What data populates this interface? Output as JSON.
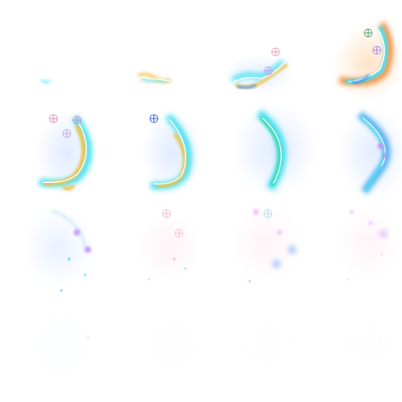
{
  "sprite_sheet": {
    "columns": 4,
    "rows": 4,
    "frames": [
      {
        "index": 0,
        "opacity": 0.55
      },
      {
        "index": 1,
        "opacity": 0.65
      },
      {
        "index": 2,
        "opacity": 0.9
      },
      {
        "index": 3,
        "opacity": 1.0
      },
      {
        "index": 4,
        "opacity": 1.0
      },
      {
        "index": 5,
        "opacity": 1.0
      },
      {
        "index": 6,
        "opacity": 1.0
      },
      {
        "index": 7,
        "opacity": 0.95
      },
      {
        "index": 8,
        "opacity": 0.7
      },
      {
        "index": 9,
        "opacity": 0.55
      },
      {
        "index": 10,
        "opacity": 0.5
      },
      {
        "index": 11,
        "opacity": 0.45
      },
      {
        "index": 12,
        "opacity": 0.12
      },
      {
        "index": 13,
        "opacity": 0.08
      },
      {
        "index": 14,
        "opacity": 0.05
      },
      {
        "index": 15,
        "opacity": 0.04
      }
    ]
  },
  "colors": {
    "cyan": "#3fe0f0",
    "blue": "#3c8cf0",
    "gold": "#f5c040",
    "orange": "#f09040",
    "violet": "#b070f0",
    "pink": "#f07aa0",
    "white": "#ffffff",
    "glow": "#cfe6ff"
  }
}
